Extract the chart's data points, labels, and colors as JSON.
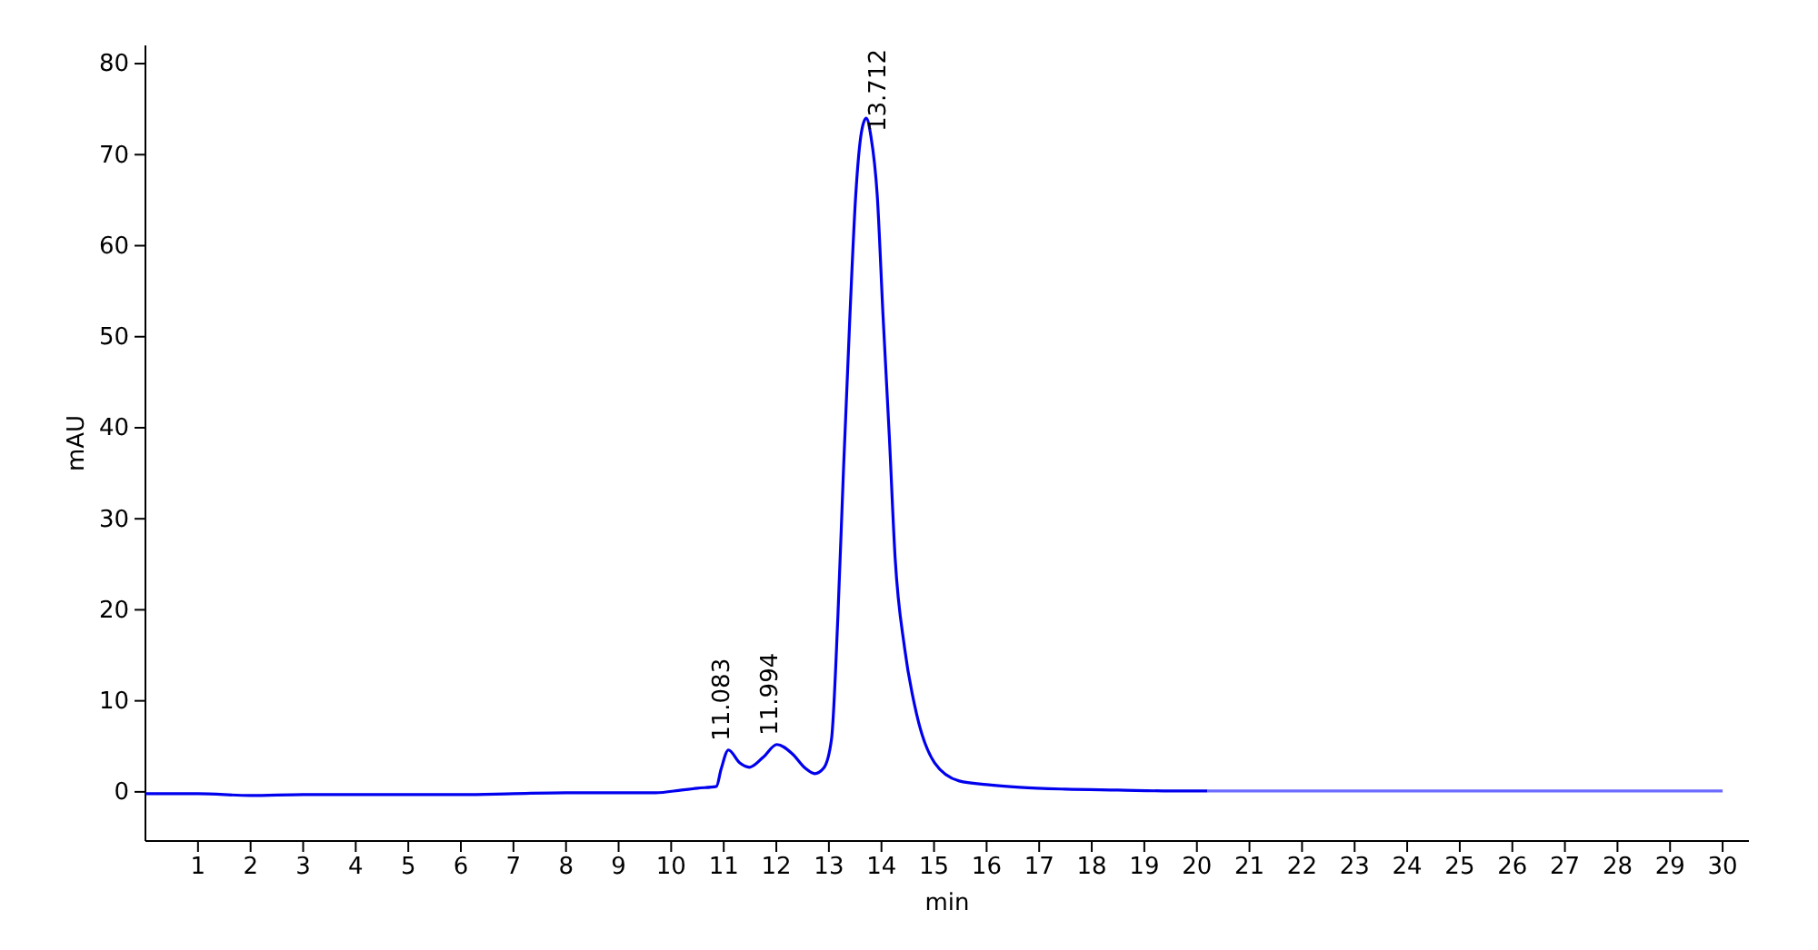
{
  "chart_data": {
    "type": "line",
    "xlabel": "min",
    "ylabel": "mAU",
    "xlim": [
      0,
      30.5
    ],
    "xticks": [
      1,
      2,
      3,
      4,
      5,
      6,
      7,
      8,
      9,
      10,
      11,
      12,
      13,
      14,
      15,
      16,
      17,
      18,
      19,
      20,
      21,
      22,
      23,
      24,
      25,
      26,
      27,
      28,
      29,
      30
    ],
    "ylim": [
      -5.4,
      82
    ],
    "yticks": [
      0,
      10,
      20,
      30,
      40,
      50,
      60,
      70,
      80
    ],
    "grid": false,
    "marker": "none",
    "line_style": "solid",
    "series": [
      {
        "color": "#0000ee",
        "x": [
          0,
          1,
          2,
          3,
          4,
          5,
          6,
          7,
          8,
          9,
          9.7,
          10.2,
          10.5,
          10.86,
          10.95,
          11.09,
          11.3,
          11.49,
          11.75,
          12.01,
          12.3,
          12.55,
          12.73,
          12.9,
          13.05,
          13.17,
          13.28,
          13.4,
          13.51,
          13.62,
          13.71,
          13.8,
          13.92,
          14.03,
          14.15,
          14.26,
          14.44,
          14.67,
          15.01,
          15.48,
          16,
          16.63,
          17.5,
          18.5,
          19.5,
          20.2
        ],
        "values": [
          -0.2,
          -0.2,
          -0.4,
          -0.3,
          -0.3,
          -0.3,
          -0.3,
          -0.2,
          -0.1,
          -0.1,
          -0.1,
          0.2,
          0.4,
          0.6,
          2.5,
          4.6,
          3.2,
          2.7,
          3.8,
          5.2,
          4.2,
          2.6,
          2.0,
          2.6,
          5.8,
          19.1,
          35.7,
          52.3,
          65.5,
          72.5,
          74.0,
          72.0,
          65.5,
          52.3,
          39.0,
          25.7,
          15.8,
          8.5,
          3.2,
          1.2,
          0.8,
          0.5,
          0.3,
          0.2,
          0.1,
          0.1
        ]
      },
      {
        "color": "#6b6bff",
        "x": [
          20.2,
          25,
          30
        ],
        "values": [
          0.1,
          0.1,
          0.1
        ]
      }
    ],
    "annotations": [
      {
        "text": "11.083",
        "x": 11.083,
        "y": 4.6
      },
      {
        "text": "11.994",
        "x": 11.994,
        "y": 5.2
      },
      {
        "text": "13.712",
        "x": 13.712,
        "y": 74.0
      }
    ]
  }
}
